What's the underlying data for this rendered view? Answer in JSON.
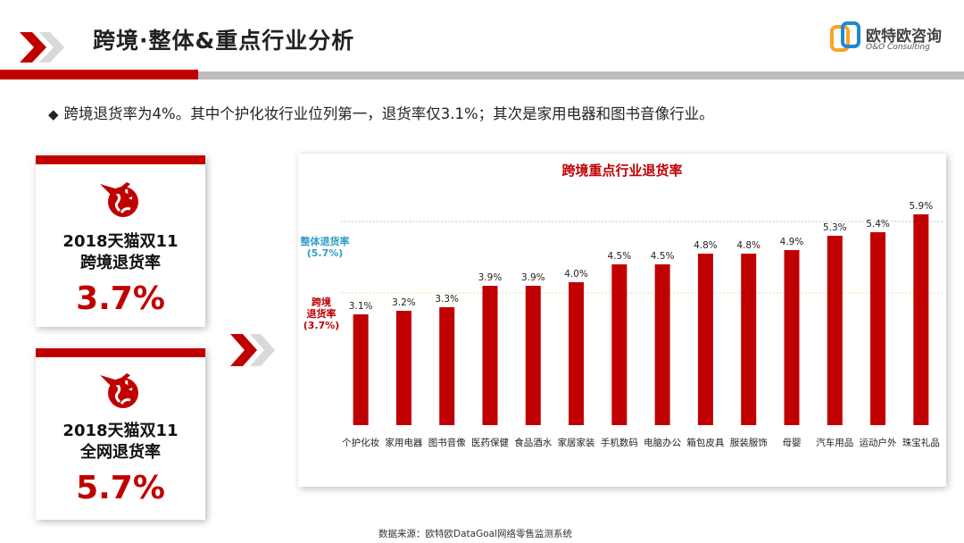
{
  "header": {
    "title": "跨境·整体&重点行业分析"
  },
  "logo": {
    "name": "欧特欧咨询",
    "sub": "O&O Consulting"
  },
  "bullet": {
    "text": "跨境退货率为4%。其中个护化妆行业位列第一，退货率仅3.1%；其次是家用电器和图书音像行业。"
  },
  "cards": [
    {
      "line1": "2018天猫双11",
      "line2": "跨境退货率",
      "value": "3.7%"
    },
    {
      "line1": "2018天猫双11",
      "line2": "全网退货率",
      "value": "5.7%"
    }
  ],
  "chart_data": {
    "type": "bar",
    "title": "跨境重点行业退货率",
    "categories": [
      "个护化妆",
      "家用电器",
      "图书音像",
      "医药保健",
      "食品酒水",
      "家居家装",
      "手机数码",
      "电脑办公",
      "箱包皮具",
      "服装服饰",
      "母婴",
      "汽车用品",
      "运动户外",
      "珠宝礼品"
    ],
    "values": [
      3.1,
      3.2,
      3.3,
      3.9,
      3.9,
      4.0,
      4.5,
      4.5,
      4.8,
      4.8,
      4.9,
      5.3,
      5.4,
      5.9
    ],
    "labels": [
      "3.1%",
      "3.2%",
      "3.3%",
      "3.9%",
      "3.9%",
      "4.0%",
      "4.5%",
      "4.5%",
      "4.8%",
      "4.8%",
      "4.9%",
      "5.3%",
      "5.4%",
      "5.9%"
    ],
    "ylim": [
      0,
      6.3
    ],
    "reference_lines": [
      {
        "line1": "整体退货率",
        "line2": "(5.7%)",
        "value": 5.7,
        "color": "#2e9ec8"
      },
      {
        "line1": "跨境",
        "line2": "退货率",
        "line3": "(3.7%)",
        "value": 3.7,
        "color": "#c00000"
      }
    ],
    "bar_color": "#c00000",
    "grid": false
  },
  "source": {
    "text": "数据来源：欧特欧DataGoal网络零售监测系统"
  }
}
